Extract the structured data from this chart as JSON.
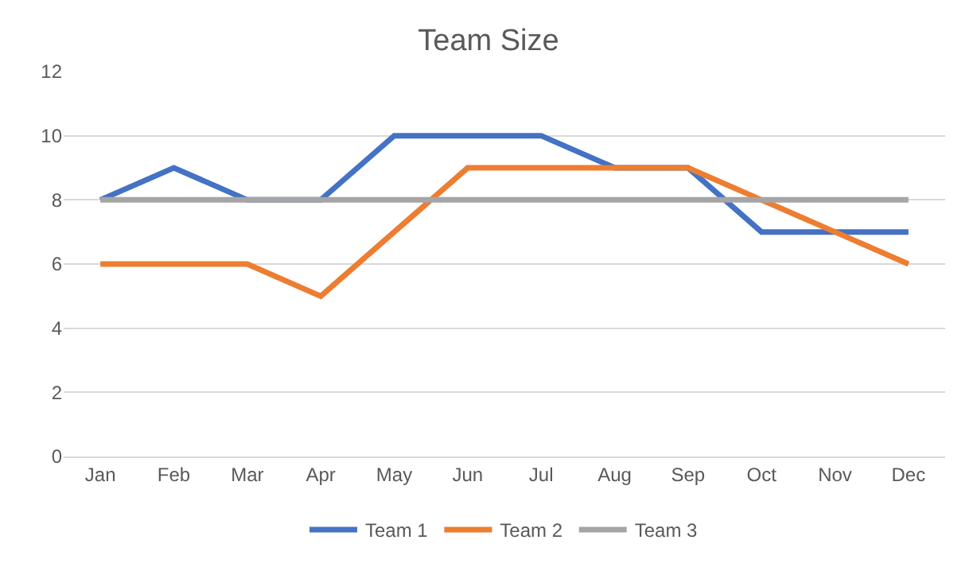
{
  "chart_data": {
    "type": "line",
    "title": "Team Size",
    "categories": [
      "Jan",
      "Feb",
      "Mar",
      "Apr",
      "May",
      "Jun",
      "Jul",
      "Aug",
      "Sep",
      "Oct",
      "Nov",
      "Dec"
    ],
    "series": [
      {
        "name": "Team 1",
        "color": "#4472c4",
        "values": [
          8,
          9,
          8,
          8,
          10,
          10,
          10,
          9,
          9,
          7,
          7,
          7
        ]
      },
      {
        "name": "Team 2",
        "color": "#ed7d31",
        "values": [
          6,
          6,
          6,
          5,
          7,
          9,
          9,
          9,
          9,
          8,
          7,
          6
        ]
      },
      {
        "name": "Team 3",
        "color": "#a5a5a5",
        "values": [
          8,
          8,
          8,
          8,
          8,
          8,
          8,
          8,
          8,
          8,
          8,
          8
        ]
      }
    ],
    "ylim": [
      0,
      12
    ],
    "yticks": [
      0,
      2,
      4,
      6,
      8,
      10,
      12
    ],
    "grid": "y",
    "legend": "bottom",
    "marker": "none",
    "line_style": "solid"
  }
}
